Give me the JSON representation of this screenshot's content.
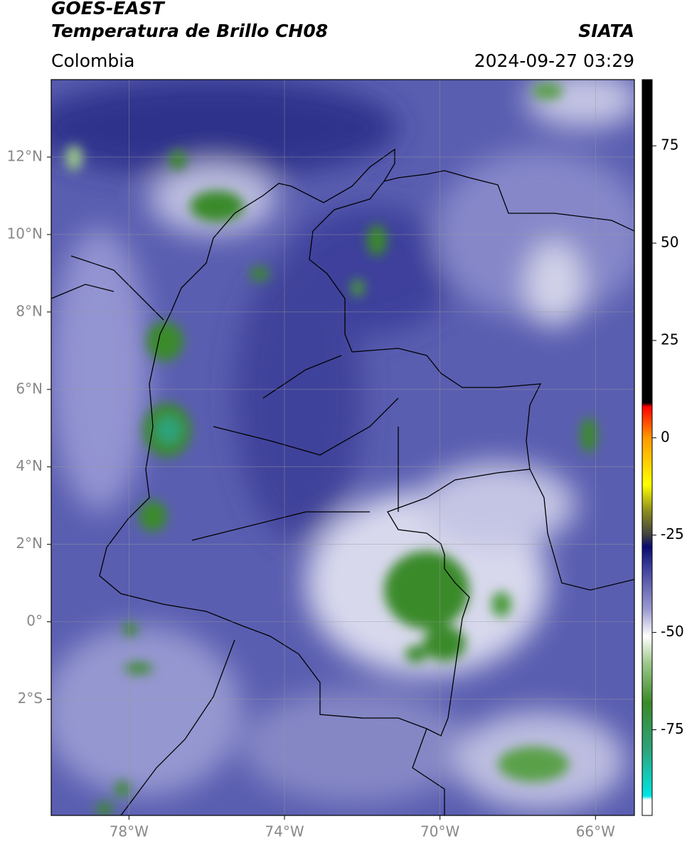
{
  "header": {
    "title": "GOES-EAST",
    "subtitle": "Temperatura de Brillo CH08",
    "source": "SIATA",
    "region": "Colombia",
    "datetime": "2024-09-27 03:29"
  },
  "chart_data": {
    "type": "map",
    "xlim": [
      -80,
      -65
    ],
    "ylim": [
      -5,
      14
    ],
    "xticks": [
      {
        "value": -78,
        "label": "78°W"
      },
      {
        "value": -74,
        "label": "74°W"
      },
      {
        "value": -70,
        "label": "70°W"
      },
      {
        "value": -66,
        "label": "66°W"
      }
    ],
    "yticks": [
      {
        "value": -2,
        "label": "2°S"
      },
      {
        "value": 0,
        "label": "0°"
      },
      {
        "value": 2,
        "label": "2°N"
      },
      {
        "value": 4,
        "label": "4°N"
      },
      {
        "value": 6,
        "label": "6°N"
      },
      {
        "value": 8,
        "label": "8°N"
      },
      {
        "value": 10,
        "label": "10°N"
      },
      {
        "value": 12,
        "label": "12°N"
      }
    ],
    "grid": true,
    "colorbar": {
      "lim": [
        -97,
        92
      ],
      "ticks": [
        -75,
        -50,
        -25,
        0,
        25,
        50,
        75
      ],
      "colormap": [
        {
          "value": -97,
          "color": "#ffffff"
        },
        {
          "value": -93,
          "color": "#ffffff"
        },
        {
          "value": -92,
          "color": "#00e5e5"
        },
        {
          "value": -80,
          "color": "#2ea37a"
        },
        {
          "value": -68,
          "color": "#3a8a2a"
        },
        {
          "value": -58,
          "color": "#9cc88a"
        },
        {
          "value": -51,
          "color": "#ffffff"
        },
        {
          "value": -44,
          "color": "#9a9ad0"
        },
        {
          "value": -33,
          "color": "#3a3d9a"
        },
        {
          "value": -28,
          "color": "#0a0a70"
        },
        {
          "value": -25,
          "color": "#404040"
        },
        {
          "value": -19,
          "color": "#8a8a20"
        },
        {
          "value": -12,
          "color": "#ffff00"
        },
        {
          "value": 0,
          "color": "#ff9900"
        },
        {
          "value": 8,
          "color": "#ff0000"
        },
        {
          "value": 9,
          "color": "#000000"
        },
        {
          "value": 92,
          "color": "#000000"
        }
      ]
    }
  }
}
